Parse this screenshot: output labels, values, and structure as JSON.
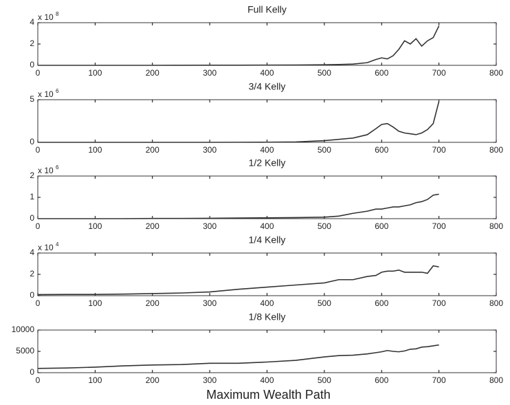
{
  "chart_data": [
    {
      "type": "line",
      "title": "Full Kelly",
      "y_multiplier": {
        "base": "x 10",
        "exponent": "8"
      },
      "x": [
        0,
        50,
        100,
        150,
        200,
        250,
        300,
        350,
        400,
        450,
        500,
        525,
        550,
        575,
        590,
        600,
        610,
        620,
        630,
        640,
        650,
        660,
        670,
        680,
        690,
        700
      ],
      "values": [
        0,
        0,
        0,
        0,
        0,
        0.005,
        0.01,
        0.01,
        0.02,
        0.03,
        0.05,
        0.08,
        0.12,
        0.25,
        0.55,
        0.7,
        0.6,
        0.9,
        1.5,
        2.3,
        2.0,
        2.5,
        1.8,
        2.3,
        2.6,
        3.7
      ],
      "color": "#333333",
      "xlim": [
        0,
        800
      ],
      "xticks": [
        0,
        100,
        200,
        300,
        400,
        500,
        600,
        700,
        800
      ],
      "ylim": [
        0,
        4
      ],
      "yticks": [
        0,
        2,
        4
      ]
    },
    {
      "type": "line",
      "title": "3/4 Kelly",
      "y_multiplier": {
        "base": "x 10",
        "exponent": "6"
      },
      "x": [
        0,
        50,
        100,
        150,
        200,
        250,
        300,
        350,
        400,
        450,
        500,
        525,
        550,
        575,
        590,
        600,
        610,
        620,
        630,
        640,
        650,
        660,
        670,
        680,
        690,
        700
      ],
      "values": [
        0,
        0,
        0,
        0,
        0,
        0,
        0,
        0.01,
        0.02,
        0.05,
        0.2,
        0.35,
        0.5,
        0.9,
        1.6,
        2.1,
        2.2,
        1.8,
        1.3,
        1.1,
        1.0,
        0.9,
        1.1,
        1.5,
        2.2,
        4.8
      ],
      "color": "#333333",
      "xlim": [
        0,
        800
      ],
      "xticks": [
        0,
        100,
        200,
        300,
        400,
        500,
        600,
        700,
        800
      ],
      "ylim": [
        0,
        5
      ],
      "yticks": [
        0,
        5
      ]
    },
    {
      "type": "line",
      "title": "1/2 Kelly",
      "y_multiplier": {
        "base": "x 10",
        "exponent": "6"
      },
      "x": [
        0,
        50,
        100,
        150,
        200,
        250,
        300,
        350,
        400,
        450,
        500,
        525,
        550,
        575,
        590,
        600,
        610,
        620,
        630,
        640,
        650,
        660,
        670,
        680,
        690,
        700
      ],
      "values": [
        0,
        0,
        0,
        0,
        0.01,
        0.01,
        0.02,
        0.03,
        0.04,
        0.05,
        0.07,
        0.12,
        0.25,
        0.35,
        0.45,
        0.45,
        0.5,
        0.55,
        0.55,
        0.6,
        0.65,
        0.75,
        0.8,
        0.9,
        1.1,
        1.15
      ],
      "color": "#333333",
      "xlim": [
        0,
        800
      ],
      "xticks": [
        0,
        100,
        200,
        300,
        400,
        500,
        600,
        700,
        800
      ],
      "ylim": [
        0,
        2
      ],
      "yticks": [
        0,
        1,
        2
      ]
    },
    {
      "type": "line",
      "title": "1/4 Kelly",
      "y_multiplier": {
        "base": "x 10",
        "exponent": "4"
      },
      "x": [
        0,
        50,
        100,
        150,
        200,
        250,
        300,
        350,
        400,
        450,
        500,
        525,
        550,
        575,
        590,
        600,
        610,
        620,
        630,
        640,
        650,
        660,
        670,
        680,
        690,
        700
      ],
      "values": [
        0.1,
        0.12,
        0.12,
        0.15,
        0.2,
        0.25,
        0.35,
        0.6,
        0.8,
        1.0,
        1.2,
        1.5,
        1.5,
        1.8,
        1.9,
        2.2,
        2.3,
        2.3,
        2.4,
        2.2,
        2.2,
        2.2,
        2.2,
        2.1,
        2.8,
        2.7
      ],
      "color": "#333333",
      "xlim": [
        0,
        800
      ],
      "xticks": [
        0,
        100,
        200,
        300,
        400,
        500,
        600,
        700,
        800
      ],
      "ylim": [
        0,
        4
      ],
      "yticks": [
        0,
        2,
        4
      ]
    },
    {
      "type": "line",
      "title": "1/8 Kelly",
      "xlabel": "Maximum Wealth Path",
      "x": [
        0,
        50,
        100,
        150,
        200,
        250,
        300,
        350,
        400,
        450,
        500,
        525,
        550,
        575,
        590,
        600,
        610,
        620,
        630,
        640,
        650,
        660,
        670,
        680,
        690,
        700
      ],
      "values": [
        1000,
        1100,
        1300,
        1600,
        1800,
        1900,
        2200,
        2200,
        2500,
        2900,
        3700,
        4000,
        4100,
        4400,
        4700,
        4900,
        5200,
        5000,
        4900,
        5100,
        5500,
        5600,
        6000,
        6100,
        6300,
        6500
      ],
      "color": "#333333",
      "xlim": [
        0,
        800
      ],
      "xticks": [
        0,
        100,
        200,
        300,
        400,
        500,
        600,
        700,
        800
      ],
      "ylim": [
        0,
        10000
      ],
      "yticks": [
        0,
        5000,
        10000
      ]
    }
  ]
}
